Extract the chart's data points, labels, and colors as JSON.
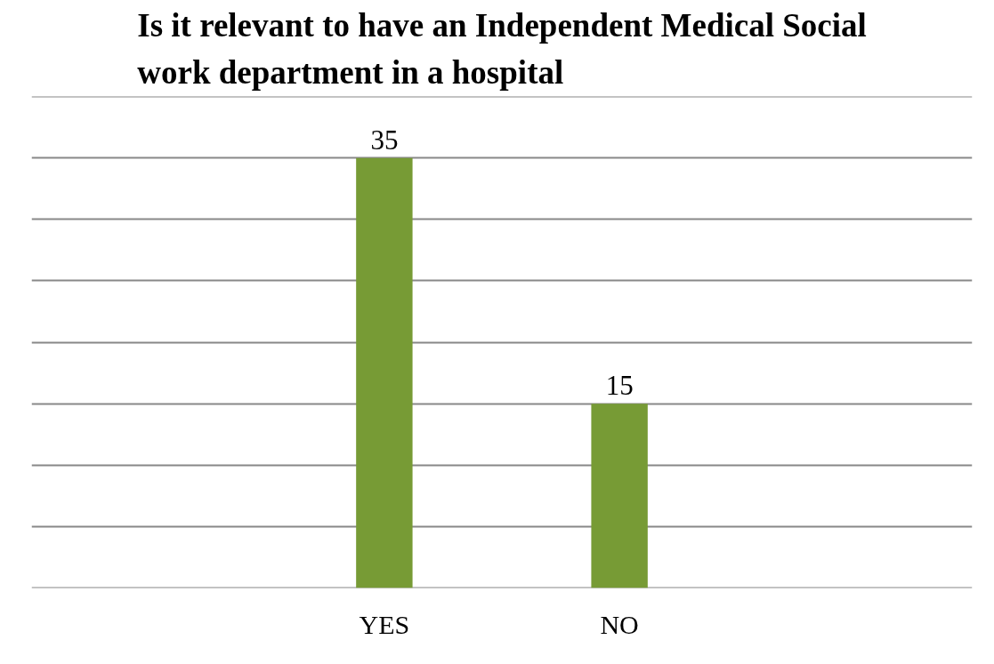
{
  "chart_data": {
    "type": "bar",
    "title": "Is it relevant to have an Independent Medical Social work department in a hospital",
    "categories": [
      null,
      "YES",
      "NO",
      null
    ],
    "values": [
      null,
      35,
      15,
      null
    ],
    "color": "#779b35",
    "ylim": [
      0,
      40
    ],
    "yticks": [
      {
        "value": 0,
        "label": null
      },
      {
        "value": 5,
        "label": null
      },
      {
        "value": 10,
        "label": null
      },
      {
        "value": 15,
        "label": null
      },
      {
        "value": 20,
        "label": null
      },
      {
        "value": 25,
        "label": null
      },
      {
        "value": 30,
        "label": null
      },
      {
        "value": 35,
        "label": null
      },
      {
        "value": 40,
        "label": null
      }
    ],
    "grid": "y",
    "tick_labels": "x",
    "data_labels": true
  }
}
